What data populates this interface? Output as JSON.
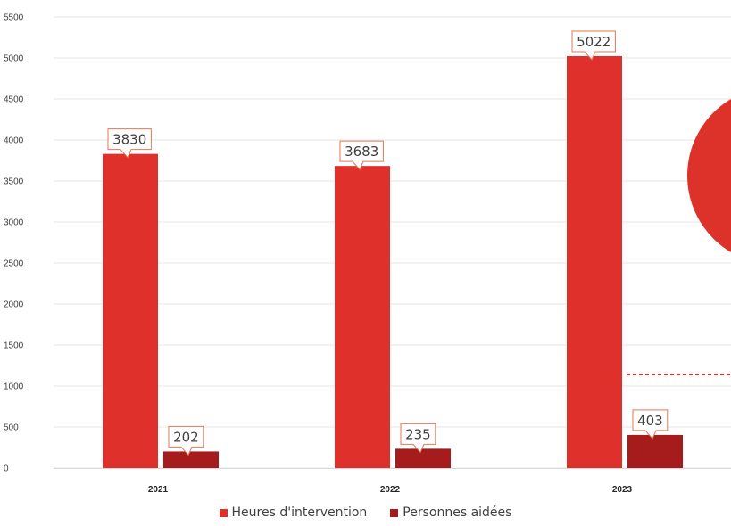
{
  "chart_data": {
    "type": "bar",
    "categories": [
      "2021",
      "2022",
      "2023"
    ],
    "series": [
      {
        "name": "Heures d'intervention",
        "values": [
          3830,
          3683,
          5022
        ],
        "color": "#e0302b"
      },
      {
        "name": "Personnes aidées",
        "values": [
          202,
          235,
          403
        ],
        "color": "#a61c1c"
      }
    ],
    "yticks": [
      "0",
      "500",
      "1000",
      "1500",
      "2000",
      "2500",
      "3000",
      "3500",
      "4000",
      "4500",
      "5000",
      "5500"
    ],
    "ylim": [
      0,
      5500
    ],
    "grid": true,
    "legend_position": "bottom",
    "data_labels": true,
    "decoration_color": "#dc322a"
  }
}
